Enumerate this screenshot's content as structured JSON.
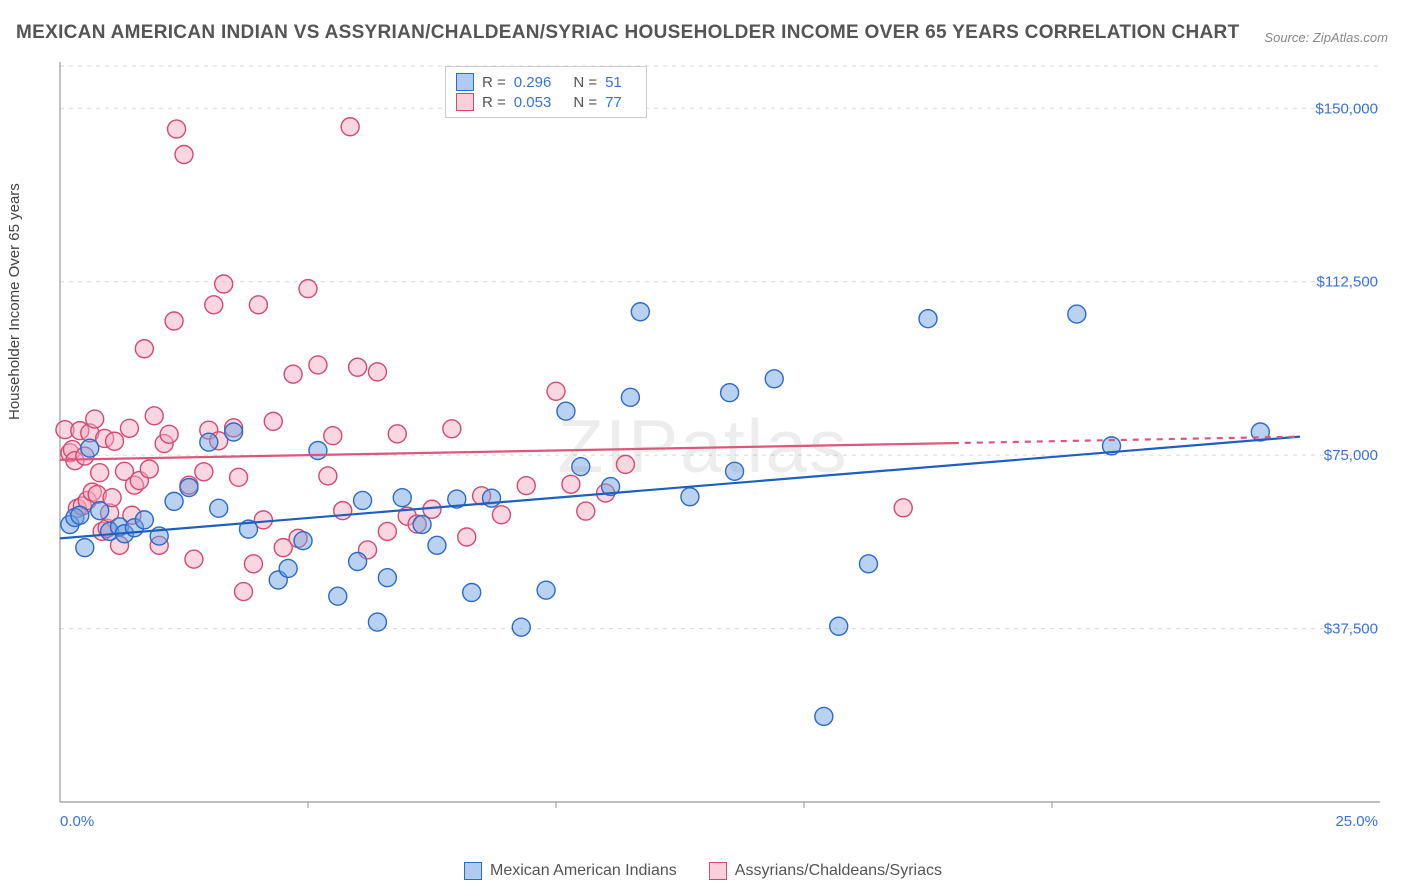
{
  "title": "MEXICAN AMERICAN INDIAN VS ASSYRIAN/CHALDEAN/SYRIAC HOUSEHOLDER INCOME OVER 65 YEARS CORRELATION CHART",
  "source_label": "Source:",
  "source_value": "ZipAtlas.com",
  "watermark": "ZIPatlas",
  "y_axis_label": "Householder Income Over 65 years",
  "chart": {
    "type": "scatter",
    "background_color": "#ffffff",
    "grid_color": "#d8d8d8",
    "axis_color": "#999999",
    "xlim": [
      0,
      25
    ],
    "ylim": [
      0,
      160000
    ],
    "x_ticks": [
      {
        "v": 0,
        "label": "0.0%"
      },
      {
        "v": 25,
        "label": "25.0%"
      }
    ],
    "x_minor_ticks": [
      5,
      10,
      15,
      20
    ],
    "y_ticks": [
      {
        "v": 37500,
        "label": "$37,500"
      },
      {
        "v": 75000,
        "label": "$75,000"
      },
      {
        "v": 112500,
        "label": "$112,500"
      },
      {
        "v": 150000,
        "label": "$150,000"
      }
    ],
    "marker_radius": 9,
    "marker_stroke_width": 1.4,
    "trend_line_width": 2.2,
    "series": [
      {
        "id": "blue",
        "name": "Mexican American Indians",
        "fill": "rgba(109,160,226,0.48)",
        "stroke": "#2b6bc9",
        "trend_color": "#1f5fc0",
        "R": "0.296",
        "N": "51",
        "trend": {
          "x1": 0,
          "y1": 57000,
          "x2": 25,
          "y2": 79000
        },
        "points": [
          [
            0.2,
            60000
          ],
          [
            0.3,
            61500
          ],
          [
            0.4,
            62000
          ],
          [
            0.5,
            55000
          ],
          [
            0.6,
            76500
          ],
          [
            0.8,
            63000
          ],
          [
            1.0,
            58500
          ],
          [
            1.2,
            59500
          ],
          [
            1.3,
            58000
          ],
          [
            1.5,
            59300
          ],
          [
            1.7,
            61000
          ],
          [
            2.0,
            57500
          ],
          [
            2.3,
            65000
          ],
          [
            2.6,
            68000
          ],
          [
            3.0,
            77800
          ],
          [
            3.2,
            63500
          ],
          [
            3.5,
            80000
          ],
          [
            3.8,
            59000
          ],
          [
            4.4,
            48000
          ],
          [
            4.6,
            50500
          ],
          [
            4.9,
            56500
          ],
          [
            5.2,
            76000
          ],
          [
            5.6,
            44500
          ],
          [
            6.0,
            52000
          ],
          [
            6.1,
            65200
          ],
          [
            6.4,
            38900
          ],
          [
            6.6,
            48500
          ],
          [
            6.9,
            65800
          ],
          [
            7.3,
            60000
          ],
          [
            7.6,
            55500
          ],
          [
            8.0,
            65500
          ],
          [
            8.3,
            45300
          ],
          [
            8.7,
            65700
          ],
          [
            9.3,
            37800
          ],
          [
            9.8,
            45800
          ],
          [
            10.2,
            84500
          ],
          [
            10.5,
            72500
          ],
          [
            11.1,
            68200
          ],
          [
            11.5,
            87500
          ],
          [
            11.7,
            106000
          ],
          [
            12.7,
            66000
          ],
          [
            13.5,
            88500
          ],
          [
            13.6,
            71500
          ],
          [
            14.4,
            91500
          ],
          [
            15.4,
            18500
          ],
          [
            15.7,
            38000
          ],
          [
            16.3,
            51500
          ],
          [
            17.5,
            104500
          ],
          [
            20.5,
            105500
          ],
          [
            21.2,
            77000
          ],
          [
            24.2,
            80000
          ]
        ]
      },
      {
        "id": "pink",
        "name": "Assyrians/Chaldeans/Syriacs",
        "fill": "rgba(245,170,190,0.48)",
        "stroke": "#d34a72",
        "trend_color": "#e0557e",
        "R": "0.053",
        "N": "77",
        "trend": {
          "x1": 0,
          "y1": 74000,
          "x2": 25,
          "y2": 79000
        },
        "trend_dash_after": 18,
        "points": [
          [
            0.1,
            80500
          ],
          [
            0.2,
            75500
          ],
          [
            0.25,
            76200
          ],
          [
            0.3,
            73800
          ],
          [
            0.35,
            63500
          ],
          [
            0.4,
            80300
          ],
          [
            0.45,
            64000
          ],
          [
            0.5,
            74800
          ],
          [
            0.55,
            65200
          ],
          [
            0.6,
            79800
          ],
          [
            0.65,
            67000
          ],
          [
            0.7,
            82800
          ],
          [
            0.75,
            66500
          ],
          [
            0.8,
            71200
          ],
          [
            0.85,
            58500
          ],
          [
            0.9,
            78600
          ],
          [
            0.95,
            59200
          ],
          [
            1.0,
            62500
          ],
          [
            1.05,
            65800
          ],
          [
            1.1,
            78000
          ],
          [
            1.2,
            55500
          ],
          [
            1.3,
            71500
          ],
          [
            1.4,
            80800
          ],
          [
            1.45,
            62000
          ],
          [
            1.5,
            68500
          ],
          [
            1.6,
            69500
          ],
          [
            1.7,
            98000
          ],
          [
            1.8,
            72000
          ],
          [
            1.9,
            83500
          ],
          [
            2.0,
            55500
          ],
          [
            2.1,
            77500
          ],
          [
            2.2,
            79500
          ],
          [
            2.3,
            104000
          ],
          [
            2.35,
            145500
          ],
          [
            2.5,
            140000
          ],
          [
            2.6,
            68500
          ],
          [
            2.7,
            52500
          ],
          [
            2.9,
            71400
          ],
          [
            3.0,
            80400
          ],
          [
            3.1,
            107500
          ],
          [
            3.2,
            78100
          ],
          [
            3.3,
            112000
          ],
          [
            3.5,
            80900
          ],
          [
            3.6,
            70200
          ],
          [
            3.7,
            45500
          ],
          [
            3.9,
            51500
          ],
          [
            4.0,
            107500
          ],
          [
            4.1,
            61000
          ],
          [
            4.3,
            82300
          ],
          [
            4.5,
            55000
          ],
          [
            4.7,
            92500
          ],
          [
            4.8,
            57000
          ],
          [
            5.0,
            111000
          ],
          [
            5.2,
            94500
          ],
          [
            5.4,
            70500
          ],
          [
            5.5,
            79200
          ],
          [
            5.7,
            63000
          ],
          [
            5.85,
            146000
          ],
          [
            6.0,
            94000
          ],
          [
            6.2,
            54500
          ],
          [
            6.4,
            93000
          ],
          [
            6.6,
            58500
          ],
          [
            6.8,
            79600
          ],
          [
            7.0,
            61800
          ],
          [
            7.2,
            60100
          ],
          [
            7.5,
            63300
          ],
          [
            7.9,
            80700
          ],
          [
            8.2,
            57300
          ],
          [
            8.5,
            66200
          ],
          [
            8.9,
            62100
          ],
          [
            9.4,
            68400
          ],
          [
            10.0,
            88800
          ],
          [
            10.3,
            68700
          ],
          [
            10.6,
            62900
          ],
          [
            11.0,
            66800
          ],
          [
            11.4,
            73000
          ],
          [
            17.0,
            63600
          ]
        ]
      }
    ]
  },
  "stats_legend": {
    "r_label": "R =",
    "n_label": "N ="
  },
  "bottom_legend": {
    "items": [
      "Mexican American Indians",
      "Assyrians/Chaldeans/Syriacs"
    ]
  }
}
